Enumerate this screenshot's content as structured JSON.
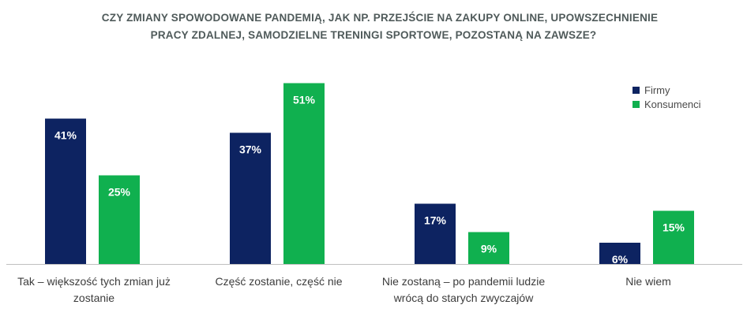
{
  "title_line1": "Czy  zmiany spowodowane pandemią, jak np. przejście na zakupy online, upowszechnienie",
  "title_line2": "pracy zdalnej, samodzielne treningi sportowe, pozostaną na zawsze?",
  "chart_data": {
    "type": "bar",
    "title": "Czy  zmiany spowodowane pandemią, jak np. przejście na zakupy online, upowszechnienie pracy zdalnej, samodzielne treningi sportowe, pozostaną na zawsze?",
    "categories": [
      "Tak – większość tych zmian już zostanie",
      "Część zostanie, część nie",
      "Nie zostaną – po pandemii ludzie wrócą do starych zwyczajów",
      "Nie wiem"
    ],
    "series": [
      {
        "name": "Firmy",
        "color": "#0d2361",
        "values": [
          41,
          37,
          17,
          6
        ],
        "labels": [
          "41%",
          "37%",
          "17%",
          "6%"
        ]
      },
      {
        "name": "Konsumenci",
        "color": "#10b04f",
        "values": [
          25,
          51,
          9,
          15
        ],
        "labels": [
          "25%",
          "51%",
          "9%",
          "15%"
        ]
      }
    ],
    "unit": "%",
    "ylim": [
      0,
      55
    ],
    "grid": false,
    "legend_position": "top-right"
  }
}
